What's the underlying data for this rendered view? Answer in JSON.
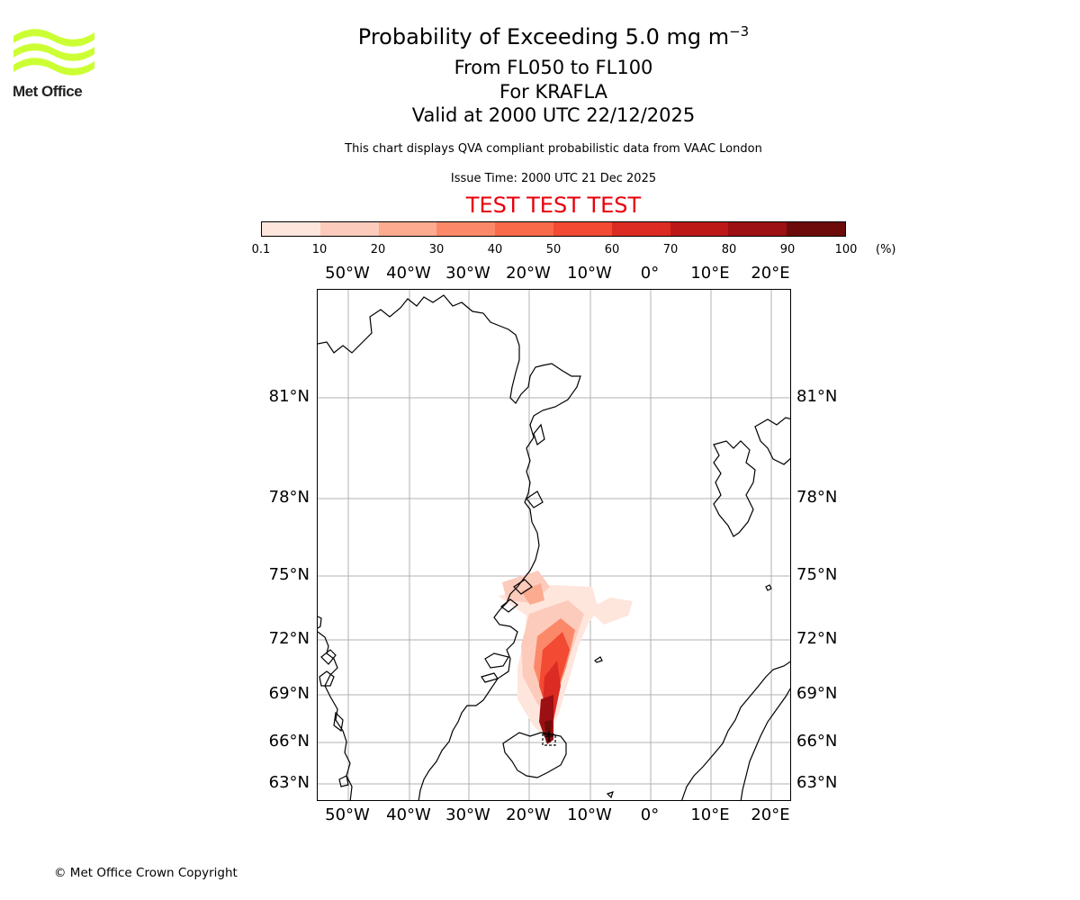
{
  "header": {
    "title_prefix": "Probability of Exceeding 5.0 mg m",
    "title_exponent": "−3",
    "levels": "From FL050 to FL100",
    "volcano": "For KRAFLA",
    "valid": "Valid at 2000 UTC 22/12/2025",
    "subtitle": "This chart displays QVA compliant probabilistic data from VAAC London",
    "issue_time": "Issue Time: 2000 UTC 21 Dec 2025",
    "test_banner": "TEST TEST TEST"
  },
  "logo": {
    "text": "Met Office",
    "color": "#ccff33"
  },
  "colorbar": {
    "ticks": [
      "0.1",
      "10",
      "20",
      "30",
      "40",
      "50",
      "60",
      "70",
      "80",
      "90",
      "100"
    ],
    "unit": "(%)",
    "colors": [
      "#fee6dd",
      "#fccbbc",
      "#fcaa90",
      "#fb8969",
      "#f86a4a",
      "#f24a33",
      "#db2b23",
      "#bd1818",
      "#9c0f12",
      "#6d0a0a"
    ]
  },
  "map": {
    "lon_labels": [
      "50°W",
      "40°W",
      "30°W",
      "20°W",
      "10°W",
      "0°",
      "10°E",
      "20°E"
    ],
    "lat_labels": [
      "81°N",
      "78°N",
      "75°N",
      "72°N",
      "69°N",
      "66°N",
      "63°N"
    ]
  },
  "footer": {
    "copyright": "© Met Office Crown Copyright"
  }
}
